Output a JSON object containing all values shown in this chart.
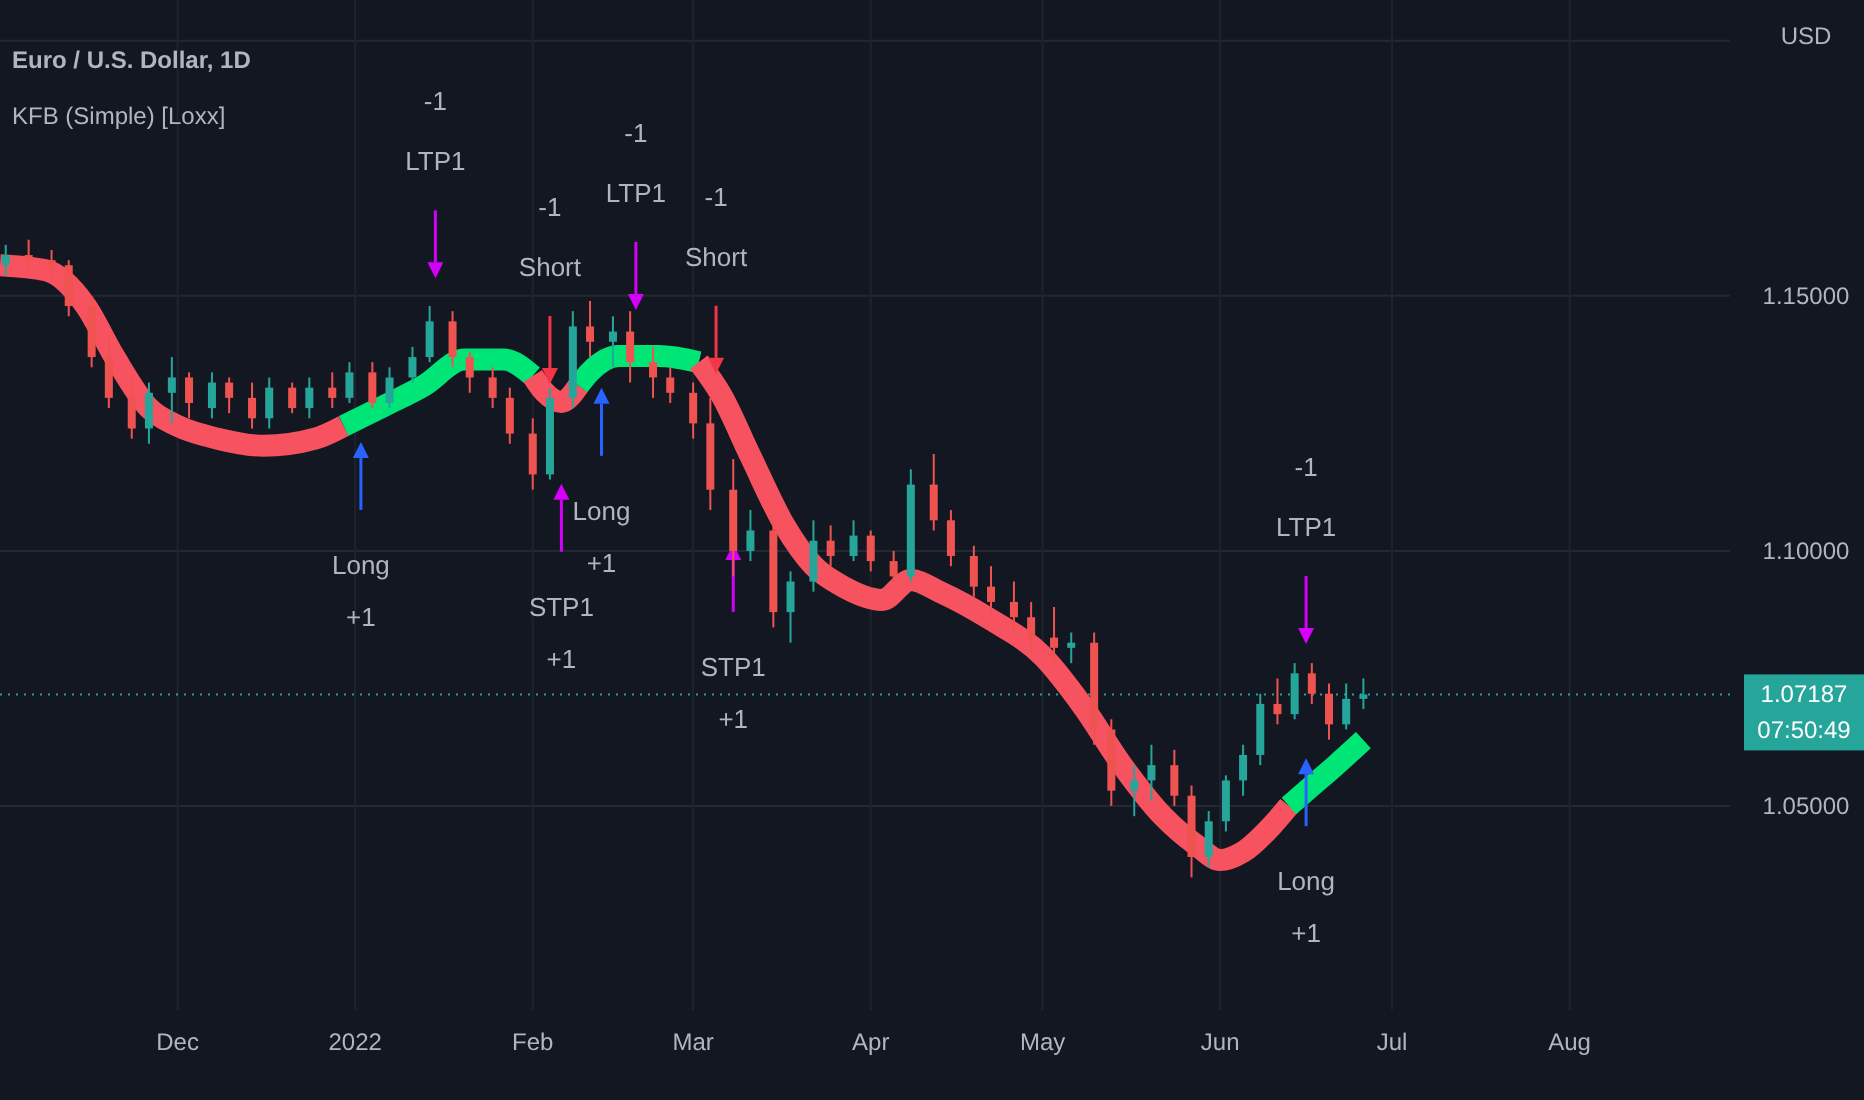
{
  "chart_data": {
    "type": "candlestick",
    "title": "Euro / U.S. Dollar, 1D",
    "subtitle": "KFB (Simple) [Loxx]",
    "ylabel": "USD",
    "x": [
      "2021-11-01",
      "2021-11-05",
      "2021-11-09",
      "2021-11-12",
      "2021-11-16",
      "2021-11-19",
      "2021-11-23",
      "2021-11-26",
      "2021-11-30",
      "2021-12-03",
      "2021-12-07",
      "2021-12-10",
      "2021-12-14",
      "2021-12-17",
      "2021-12-21",
      "2021-12-24",
      "2021-12-28",
      "2021-12-31",
      "2022-01-04",
      "2022-01-07",
      "2022-01-11",
      "2022-01-14",
      "2022-01-18",
      "2022-01-21",
      "2022-01-25",
      "2022-01-28",
      "2022-02-01",
      "2022-02-04",
      "2022-02-08",
      "2022-02-11",
      "2022-02-15",
      "2022-02-18",
      "2022-02-22",
      "2022-02-25",
      "2022-03-01",
      "2022-03-04",
      "2022-03-08",
      "2022-03-11",
      "2022-03-15",
      "2022-03-18",
      "2022-03-22",
      "2022-03-25",
      "2022-03-29",
      "2022-04-01",
      "2022-04-05",
      "2022-04-08",
      "2022-04-12",
      "2022-04-15",
      "2022-04-19",
      "2022-04-22",
      "2022-04-26",
      "2022-04-29",
      "2022-05-03",
      "2022-05-06",
      "2022-05-10",
      "2022-05-13",
      "2022-05-17",
      "2022-05-20",
      "2022-05-24",
      "2022-05-27",
      "2022-05-30",
      "2022-06-02",
      "2022-06-05",
      "2022-06-08",
      "2022-06-11",
      "2022-06-14",
      "2022-06-17",
      "2022-06-20",
      "2022-06-23",
      "2022-06-26"
    ],
    "ohlc": [
      [
        1.156,
        1.16,
        1.154,
        1.158
      ],
      [
        1.158,
        1.161,
        1.155,
        1.157
      ],
      [
        1.157,
        1.159,
        1.154,
        1.156
      ],
      [
        1.156,
        1.157,
        1.146,
        1.148
      ],
      [
        1.148,
        1.15,
        1.136,
        1.138
      ],
      [
        1.138,
        1.142,
        1.128,
        1.13
      ],
      [
        1.13,
        1.134,
        1.122,
        1.124
      ],
      [
        1.124,
        1.133,
        1.121,
        1.131
      ],
      [
        1.131,
        1.138,
        1.125,
        1.134
      ],
      [
        1.134,
        1.135,
        1.126,
        1.129
      ],
      [
        1.128,
        1.135,
        1.126,
        1.133
      ],
      [
        1.133,
        1.134,
        1.127,
        1.13
      ],
      [
        1.13,
        1.133,
        1.124,
        1.126
      ],
      [
        1.126,
        1.134,
        1.124,
        1.132
      ],
      [
        1.132,
        1.133,
        1.127,
        1.128
      ],
      [
        1.128,
        1.134,
        1.126,
        1.132
      ],
      [
        1.132,
        1.135,
        1.128,
        1.13
      ],
      [
        1.13,
        1.137,
        1.129,
        1.135
      ],
      [
        1.135,
        1.137,
        1.128,
        1.129
      ],
      [
        1.129,
        1.136,
        1.128,
        1.134
      ],
      [
        1.134,
        1.14,
        1.133,
        1.138
      ],
      [
        1.138,
        1.148,
        1.137,
        1.145
      ],
      [
        1.145,
        1.147,
        1.136,
        1.138
      ],
      [
        1.138,
        1.139,
        1.131,
        1.134
      ],
      [
        1.134,
        1.136,
        1.128,
        1.13
      ],
      [
        1.13,
        1.132,
        1.121,
        1.123
      ],
      [
        1.123,
        1.126,
        1.112,
        1.115
      ],
      [
        1.115,
        1.132,
        1.114,
        1.13
      ],
      [
        1.13,
        1.147,
        1.128,
        1.144
      ],
      [
        1.144,
        1.149,
        1.138,
        1.141
      ],
      [
        1.141,
        1.146,
        1.136,
        1.143
      ],
      [
        1.143,
        1.147,
        1.133,
        1.137
      ],
      [
        1.137,
        1.14,
        1.13,
        1.134
      ],
      [
        1.134,
        1.136,
        1.129,
        1.131
      ],
      [
        1.131,
        1.133,
        1.122,
        1.125
      ],
      [
        1.125,
        1.13,
        1.108,
        1.112
      ],
      [
        1.112,
        1.118,
        1.095,
        1.1
      ],
      [
        1.1,
        1.108,
        1.098,
        1.104
      ],
      [
        1.104,
        1.106,
        1.085,
        1.088
      ],
      [
        1.088,
        1.096,
        1.082,
        1.094
      ],
      [
        1.094,
        1.106,
        1.092,
        1.102
      ],
      [
        1.102,
        1.105,
        1.097,
        1.099
      ],
      [
        1.099,
        1.106,
        1.098,
        1.103
      ],
      [
        1.103,
        1.104,
        1.096,
        1.098
      ],
      [
        1.098,
        1.1,
        1.094,
        1.095
      ],
      [
        1.095,
        1.116,
        1.094,
        1.113
      ],
      [
        1.113,
        1.119,
        1.104,
        1.106
      ],
      [
        1.106,
        1.108,
        1.097,
        1.099
      ],
      [
        1.099,
        1.101,
        1.091,
        1.093
      ],
      [
        1.093,
        1.097,
        1.087,
        1.09
      ],
      [
        1.09,
        1.094,
        1.084,
        1.087
      ],
      [
        1.087,
        1.09,
        1.08,
        1.083
      ],
      [
        1.083,
        1.089,
        1.078,
        1.081
      ],
      [
        1.081,
        1.084,
        1.078,
        1.082
      ],
      [
        1.082,
        1.084,
        1.062,
        1.065
      ],
      [
        1.065,
        1.067,
        1.05,
        1.053
      ],
      [
        1.053,
        1.058,
        1.048,
        1.055
      ],
      [
        1.055,
        1.062,
        1.051,
        1.058
      ],
      [
        1.058,
        1.061,
        1.05,
        1.052
      ],
      [
        1.052,
        1.054,
        1.036,
        1.04
      ],
      [
        1.04,
        1.049,
        1.038,
        1.047
      ],
      [
        1.047,
        1.056,
        1.045,
        1.055
      ],
      [
        1.055,
        1.062,
        1.052,
        1.06
      ],
      [
        1.06,
        1.072,
        1.058,
        1.07
      ],
      [
        1.07,
        1.075,
        1.066,
        1.068
      ],
      [
        1.068,
        1.078,
        1.067,
        1.076
      ],
      [
        1.076,
        1.078,
        1.07,
        1.072
      ],
      [
        1.072,
        1.074,
        1.063,
        1.066
      ],
      [
        1.066,
        1.074,
        1.065,
        1.071
      ],
      [
        1.071,
        1.075,
        1.069,
        1.07187
      ]
    ],
    "series": [
      {
        "type": "line",
        "color": "#f7525f",
        "x": [
          "2021-10-31",
          "2021-11-08",
          "2021-11-15",
          "2021-11-20",
          "2021-11-26",
          "2021-12-01",
          "2021-12-08",
          "2021-12-16",
          "2021-12-25",
          "2021-12-30"
        ],
        "values": [
          1.156,
          1.155,
          1.148,
          1.138,
          1.128,
          1.1245,
          1.122,
          1.1206,
          1.122,
          1.1245
        ]
      },
      {
        "type": "line",
        "color": "#00e676",
        "x": [
          "2021-12-30",
          "2022-01-06",
          "2022-01-13",
          "2022-01-20",
          "2022-01-27",
          "2022-02-01"
        ],
        "values": [
          1.1245,
          1.1284,
          1.1324,
          1.1375,
          1.1375,
          1.1343
        ]
      },
      {
        "type": "line",
        "color": "#f7525f",
        "x": [
          "2022-02-01",
          "2022-02-03",
          "2022-02-06",
          "2022-02-09"
        ],
        "values": [
          1.1343,
          1.1312,
          1.1292,
          1.1324
        ]
      },
      {
        "type": "line",
        "color": "#00e676",
        "x": [
          "2022-02-09",
          "2022-02-11",
          "2022-02-16",
          "2022-02-23",
          "2022-03-02"
        ],
        "values": [
          1.1324,
          1.1351,
          1.1382,
          1.1382,
          1.137
        ]
      },
      {
        "type": "line",
        "color": "#f7525f",
        "x": [
          "2022-03-02",
          "2022-03-06",
          "2022-03-11",
          "2022-03-17",
          "2022-03-22",
          "2022-03-27",
          "2022-04-03",
          "2022-04-08",
          "2022-04-13",
          "2022-04-22",
          "2022-05-01",
          "2022-05-08",
          "2022-05-15",
          "2022-05-22",
          "2022-05-28",
          "2022-06-01",
          "2022-06-05",
          "2022-06-10",
          "2022-06-13"
        ],
        "values": [
          1.137,
          1.1304,
          1.1186,
          1.1049,
          1.0971,
          1.0931,
          1.0904,
          1.0943,
          1.092,
          1.0865,
          1.0794,
          1.0696,
          1.0578,
          1.048,
          1.0422,
          1.0394,
          1.041,
          1.0461,
          1.05
        ]
      },
      {
        "type": "line",
        "color": "#00e676",
        "x": [
          "2022-06-13",
          "2022-06-17",
          "2022-06-21",
          "2022-06-26"
        ],
        "values": [
          1.05,
          1.0539,
          1.0578,
          1.0629
        ]
      },
      {
        "type": "scatter",
        "x": [
          "2022-01-15",
          "2022-02-04",
          "2022-02-19",
          "2022-03-05",
          "2022-06-16",
          "2022-01-02",
          "2022-02-06",
          "2022-02-13",
          "2022-03-08",
          "2022-06-16"
        ],
        "values": [
          1.155,
          1.1343,
          1.1488,
          1.1363,
          1.0833,
          1.1198,
          1.1116,
          1.1304,
          1.0998,
          1.0578
        ],
        "colors": [
          "#d500f9",
          "#f23645",
          "#d500f9",
          "#f23645",
          "#d500f9",
          "#2962ff",
          "#d500f9",
          "#2962ff",
          "#d500f9",
          "#2962ff"
        ]
      }
    ],
    "xlim": [
      "2021-10-31",
      "2022-08-29"
    ],
    "xticks": [
      {
        "value": "2021-12-01",
        "label": "Dec"
      },
      {
        "value": "2022-01-01",
        "label": "2022"
      },
      {
        "value": "2022-02-01",
        "label": "Feb"
      },
      {
        "value": "2022-03-01",
        "label": "Mar"
      },
      {
        "value": "2022-04-01",
        "label": "Apr"
      },
      {
        "value": "2022-05-01",
        "label": "May"
      },
      {
        "value": "2022-06-01",
        "label": "Jun"
      },
      {
        "value": "2022-07-01",
        "label": "Jul"
      },
      {
        "value": "2022-08-01",
        "label": "Aug"
      }
    ],
    "ylim": [
      1.01,
      1.208
    ],
    "yticks": [
      {
        "value": 1.05,
        "label": "1.05000"
      },
      {
        "value": 1.1,
        "label": "1.10000"
      },
      {
        "value": 1.15,
        "label": "1.15000"
      },
      {
        "value": 1.2,
        "label": null
      }
    ],
    "grid": true,
    "ref_lines": [
      {
        "axis": "y",
        "value": 1.07187,
        "label": "1.07187",
        "color": "#26a69a",
        "line_style": "dotted"
      }
    ],
    "annotations": [
      "-1\nLTP1",
      "-1\nShort",
      "-1\nLTP1",
      "-1\nShort",
      "-1\nLTP1",
      "Long\n+1",
      "STP1\n+1",
      "Long\n+1",
      "STP1\n+1",
      "Long\n+1",
      "07:50:49"
    ]
  }
}
